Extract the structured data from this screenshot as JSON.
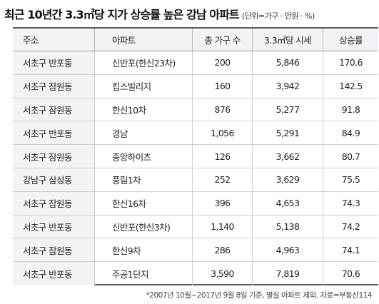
{
  "title": "최근 10년간 3.3㎡당 지가 상승률 높은 강남 아파트",
  "unit_note": "(단위=가구 · 만원 · %)",
  "table": {
    "headers": [
      "주소",
      "아파트",
      "총 가구 수",
      "3.3㎡당 시세",
      "상승률"
    ],
    "rows": [
      [
        "서초구 반포동",
        "신반포(한신23차)",
        "200",
        "5,846",
        "170.6"
      ],
      [
        "서초구 잠원동",
        "킴스빌리지",
        "160",
        "3,942",
        "142.5"
      ],
      [
        "서초구 잠원동",
        "한신10차",
        "876",
        "5,277",
        "91.8"
      ],
      [
        "서초구 반포동",
        "경남",
        "1,056",
        "5,291",
        "84.9"
      ],
      [
        "서초구 잠원동",
        "중앙하이츠",
        "126",
        "3,662",
        "80.7"
      ],
      [
        "강남구 삼성동",
        "풍림1차",
        "252",
        "3,629",
        "75.5"
      ],
      [
        "서초구 잠원동",
        "한신16차",
        "396",
        "4,653",
        "74.3"
      ],
      [
        "서초구 반포동",
        "신반포(한신3차)",
        "1,140",
        "5,138",
        "74.2"
      ],
      [
        "서초구 잠원동",
        "한신9차",
        "286",
        "4,963",
        "74.1"
      ],
      [
        "서초구 반포동",
        "주공1단지",
        "3,590",
        "7,819",
        "70.6"
      ]
    ]
  },
  "footnote": "*2007년 10월~2017년 9월 8일 기준, 멸실 아파트 제외. 자료=부동산114"
}
